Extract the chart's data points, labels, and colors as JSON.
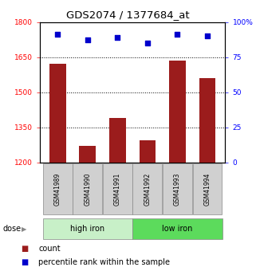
{
  "title": "GDS2074 / 1377684_at",
  "categories": [
    "GSM41989",
    "GSM41990",
    "GSM41991",
    "GSM41992",
    "GSM41993",
    "GSM41994"
  ],
  "bar_values": [
    1620,
    1270,
    1390,
    1295,
    1635,
    1560
  ],
  "percentile_values": [
    91,
    87,
    89,
    85,
    91,
    90
  ],
  "ylim_left": [
    1200,
    1800
  ],
  "ylim_right": [
    0,
    100
  ],
  "yticks_left": [
    1200,
    1350,
    1500,
    1650,
    1800
  ],
  "yticks_right": [
    0,
    25,
    50,
    75,
    100
  ],
  "bar_color": "#9B1C1C",
  "dot_color": "#0000CC",
  "group1_label": "high iron",
  "group2_label": "low iron",
  "group1_color": "#C8F0C8",
  "group2_color": "#5CDB5C",
  "dose_label": "dose",
  "legend_count_label": "count",
  "legend_pct_label": "percentile rank within the sample"
}
